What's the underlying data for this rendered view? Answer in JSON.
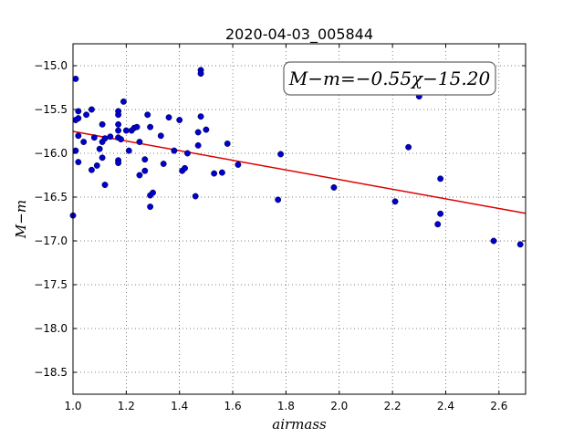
{
  "chart_data": {
    "type": "scatter",
    "title": "2020-04-03_005844",
    "xlabel": "airmass",
    "ylabel": "M−m",
    "xlim": [
      1.0,
      2.7
    ],
    "ylim": [
      -18.75,
      -14.75
    ],
    "xticks": [
      1.0,
      1.2,
      1.4,
      1.6,
      1.8,
      2.0,
      2.2,
      2.4,
      2.6
    ],
    "yticks": [
      -15.0,
      -15.5,
      -16.0,
      -16.5,
      -17.0,
      -17.5,
      -18.0,
      -18.5
    ],
    "xtick_labels": [
      "1.0",
      "1.2",
      "1.4",
      "1.6",
      "1.8",
      "2.0",
      "2.2",
      "2.4",
      "2.6"
    ],
    "ytick_labels": [
      "−15.0",
      "−15.5",
      "−16.0",
      "−16.5",
      "−17.0",
      "−17.5",
      "−18.0",
      "−18.5"
    ],
    "grid": true,
    "marker_color": "#0000cc",
    "fit_color": "#dd0000",
    "annotation": "M−m=−0.55χ−15.20",
    "fit": {
      "slope": -0.55,
      "intercept": -15.2
    },
    "points": [
      [
        1.0,
        -16.71
      ],
      [
        1.01,
        -15.15
      ],
      [
        1.01,
        -15.62
      ],
      [
        1.01,
        -15.97
      ],
      [
        1.02,
        -15.52
      ],
      [
        1.02,
        -15.6
      ],
      [
        1.02,
        -15.8
      ],
      [
        1.02,
        -16.1
      ],
      [
        1.04,
        -15.87
      ],
      [
        1.05,
        -15.56
      ],
      [
        1.07,
        -15.5
      ],
      [
        1.07,
        -16.19
      ],
      [
        1.08,
        -15.82
      ],
      [
        1.09,
        -16.14
      ],
      [
        1.1,
        -15.95
      ],
      [
        1.11,
        -15.67
      ],
      [
        1.11,
        -15.87
      ],
      [
        1.11,
        -16.05
      ],
      [
        1.12,
        -15.83
      ],
      [
        1.12,
        -16.36
      ],
      [
        1.14,
        -15.81
      ],
      [
        1.17,
        -15.52
      ],
      [
        1.17,
        -15.56
      ],
      [
        1.17,
        -15.67
      ],
      [
        1.17,
        -15.74
      ],
      [
        1.17,
        -15.82
      ],
      [
        1.17,
        -16.08
      ],
      [
        1.17,
        -16.11
      ],
      [
        1.18,
        -15.84
      ],
      [
        1.19,
        -15.41
      ],
      [
        1.2,
        -15.74
      ],
      [
        1.21,
        -15.97
      ],
      [
        1.22,
        -15.74
      ],
      [
        1.23,
        -15.71
      ],
      [
        1.24,
        -15.7
      ],
      [
        1.25,
        -16.25
      ],
      [
        1.25,
        -15.87
      ],
      [
        1.27,
        -16.07
      ],
      [
        1.27,
        -16.2
      ],
      [
        1.28,
        -15.56
      ],
      [
        1.29,
        -15.7
      ],
      [
        1.29,
        -16.48
      ],
      [
        1.29,
        -16.61
      ],
      [
        1.3,
        -16.45
      ],
      [
        1.33,
        -15.8
      ],
      [
        1.34,
        -16.12
      ],
      [
        1.36,
        -15.59
      ],
      [
        1.38,
        -15.97
      ],
      [
        1.4,
        -15.62
      ],
      [
        1.41,
        -16.2
      ],
      [
        1.42,
        -16.17
      ],
      [
        1.43,
        -16.0
      ],
      [
        1.46,
        -16.49
      ],
      [
        1.47,
        -15.76
      ],
      [
        1.47,
        -15.91
      ],
      [
        1.48,
        -15.05
      ],
      [
        1.48,
        -15.09
      ],
      [
        1.48,
        -15.58
      ],
      [
        1.5,
        -15.73
      ],
      [
        1.53,
        -16.23
      ],
      [
        1.56,
        -16.22
      ],
      [
        1.58,
        -15.89
      ],
      [
        1.62,
        -16.13
      ],
      [
        1.77,
        -16.53
      ],
      [
        1.78,
        -16.01
      ],
      [
        1.98,
        -16.39
      ],
      [
        2.21,
        -16.55
      ],
      [
        2.26,
        -15.93
      ],
      [
        2.3,
        -15.35
      ],
      [
        2.37,
        -16.81
      ],
      [
        2.38,
        -16.29
      ],
      [
        2.38,
        -16.69
      ],
      [
        2.58,
        -17.0
      ],
      [
        2.68,
        -17.04
      ]
    ]
  }
}
